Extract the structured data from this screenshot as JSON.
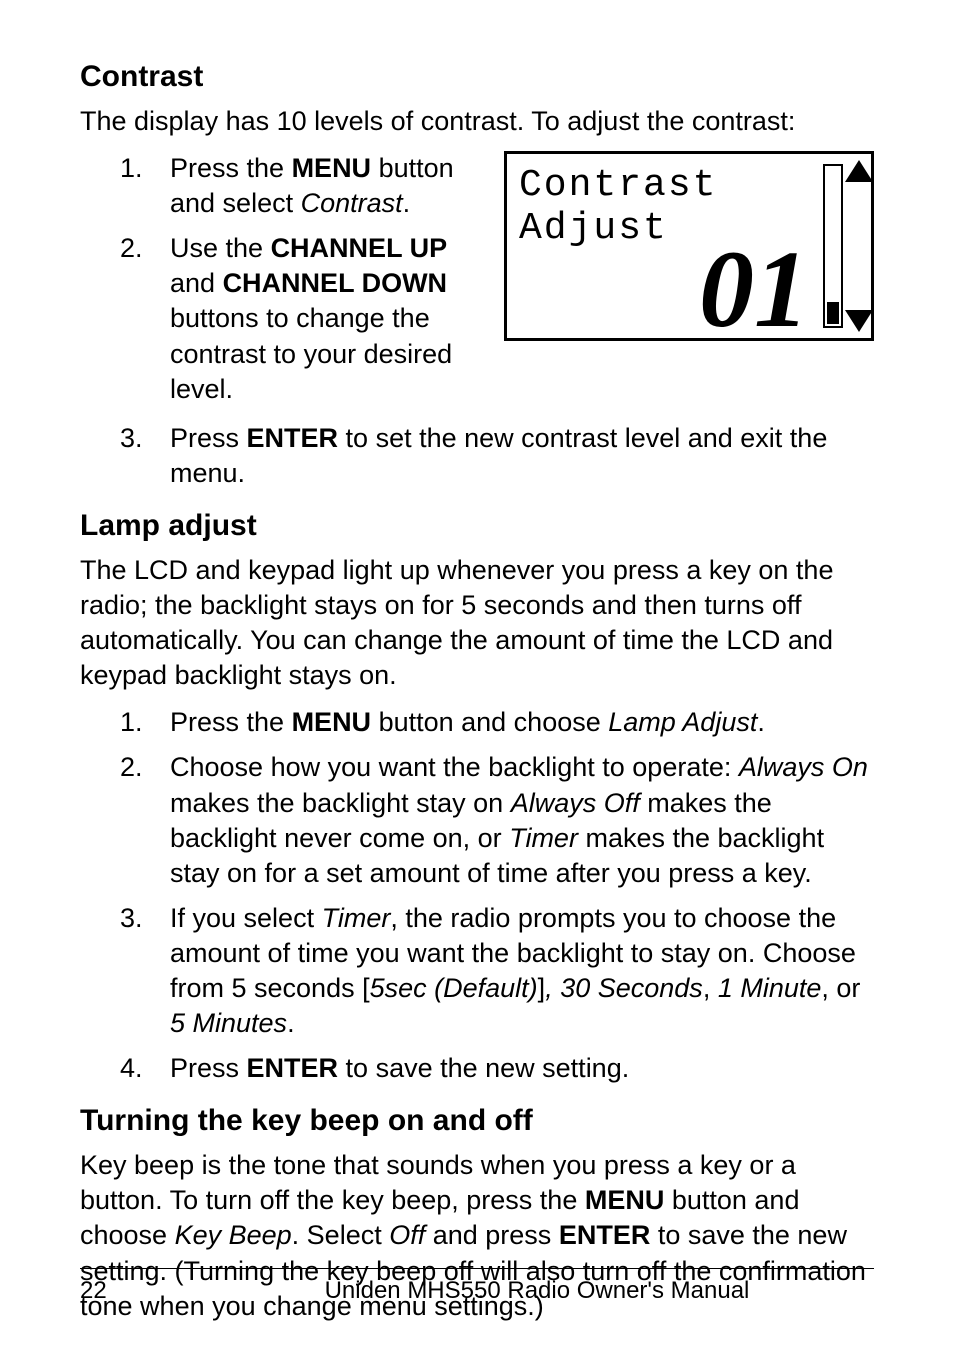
{
  "contrast": {
    "heading": "Contrast",
    "intro": "The display has 10 levels of contrast. To adjust the contrast:",
    "steps": {
      "n1": "1.",
      "s1_a": "Press the ",
      "s1_menu": "MENU",
      "s1_b": " button and select ",
      "s1_contrast": "Contrast",
      "s1_c": ".",
      "n2": "2.",
      "s2_a": "Use the ",
      "s2_chup": "CHANNEL UP",
      "s2_b": " and ",
      "s2_chdown": "CHANNEL DOWN",
      "s2_c": " buttons to change the contrast to your desired level.",
      "n3": "3.",
      "s3_a": "Press ",
      "s3_enter": "ENTER",
      "s3_b": " to set the new contrast level and exit the menu."
    },
    "lcd": {
      "line1": "Contrast",
      "line2": "Adjust",
      "value": "01"
    }
  },
  "lamp": {
    "heading": "Lamp adjust",
    "intro": "The LCD and keypad light up whenever you press a key on the radio; the backlight stays on for 5 seconds and then turns off automatically. You can change the amount of time the LCD and keypad backlight stays on.",
    "steps": {
      "n1": "1.",
      "s1_a": "Press the ",
      "s1_menu": "MENU",
      "s1_b": " button and choose ",
      "s1_lamp": "Lamp Adjust",
      "s1_c": ".",
      "n2": "2.",
      "s2_a": "Choose how you want the backlight to operate: ",
      "s2_on": "Always On",
      "s2_b": " makes the backlight stay on ",
      "s2_off": "Always Off",
      "s2_c": " makes the backlight never come on, or ",
      "s2_timer": "Timer",
      "s2_d": " makes the backlight stay on for a set amount of time after you press a key.",
      "n3": "3.",
      "s3_a": "If you select ",
      "s3_timer": "Timer",
      "s3_b": ", the radio prompts you to choose the amount of time you want the backlight to stay on. Choose from 5 seconds [",
      "s3_5sec": "5sec (Default)",
      "s3_c": "]",
      "s3_30": ", 30 Seconds",
      "s3_d": ", ",
      "s3_1m": "1 Minute",
      "s3_e": ", or ",
      "s3_5m": "5 Minutes",
      "s3_f": ".",
      "n4": "4.",
      "s4_a": "Press ",
      "s4_enter": "ENTER",
      "s4_b": " to save the new setting."
    }
  },
  "keybeep": {
    "heading": "Turning the key beep on and off",
    "p_a": "Key beep is the tone that sounds when you press a key or a button. To turn off the key beep, press the ",
    "p_menu": "MENU",
    "p_b": " button and choose ",
    "p_kb": "Key Beep",
    "p_c": ". Select ",
    "p_off": "Off",
    "p_d": " and press ",
    "p_enter": "ENTER",
    "p_e": " to save the new setting. (Turning the key beep off will also turn off the confirmation tone when you change menu settings.)"
  },
  "footer": {
    "page": "22",
    "title": "Uniden MHS550 Radio Owner's Manual"
  }
}
